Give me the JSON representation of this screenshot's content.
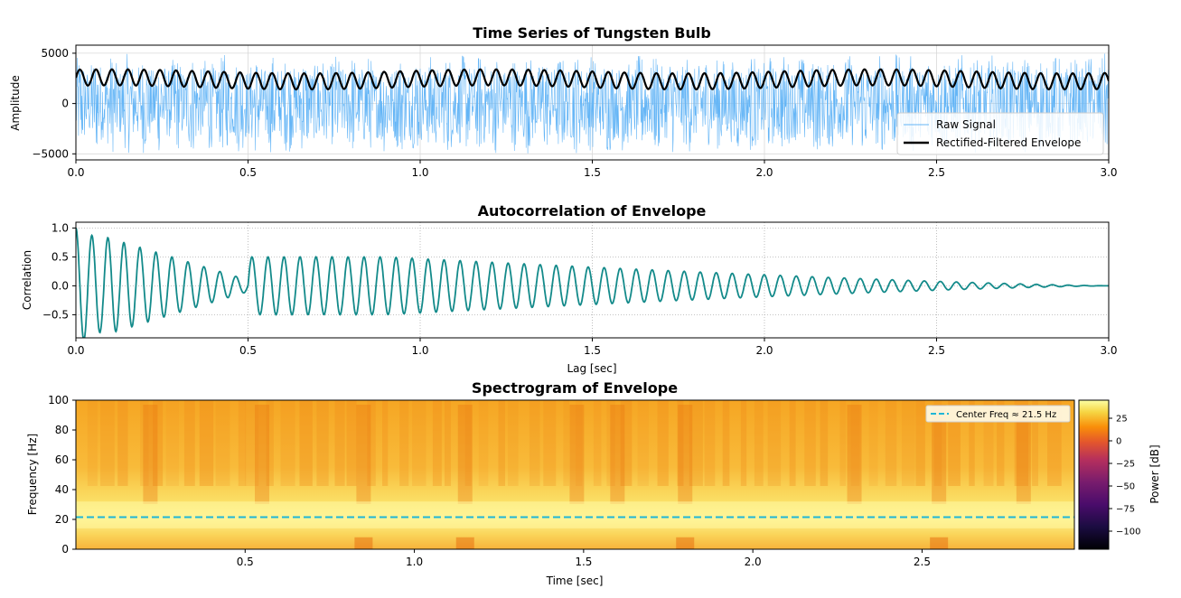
{
  "colors": {
    "raw_signal": "#64b5f6",
    "envelope": "#000000",
    "autocorr": "#138a8a",
    "center_freq_line": "#1fb6d6",
    "grid": "#b0b0b0"
  },
  "chart_data": [
    {
      "type": "line",
      "title": "Time Series of Tungsten Bulb",
      "xlabel": "",
      "ylabel": "Amplitude",
      "xlim": [
        0.0,
        3.0
      ],
      "ylim": [
        -5600,
        5800
      ],
      "xticks": [
        "0.0",
        "0.5",
        "1.0",
        "1.5",
        "2.0",
        "2.5",
        "3.0"
      ],
      "yticks": [
        "5000",
        "0",
        "−5000"
      ],
      "grid": true,
      "legend_position": "lower-right",
      "series": [
        {
          "name": "Raw Signal",
          "style": "thin line",
          "amplitude_range": [
            -5000,
            5000
          ],
          "oscillation_hz": 21.5
        },
        {
          "name": "Rectified-Filtered Envelope",
          "style": "thick line",
          "mean": 2400,
          "amplitude": 800,
          "oscillation_hz": 21.5
        }
      ]
    },
    {
      "type": "line",
      "title": "Autocorrelation of Envelope",
      "xlabel": "Lag [sec]",
      "ylabel": "Correlation",
      "xlim": [
        0.0,
        3.0
      ],
      "ylim": [
        -0.9,
        1.1
      ],
      "xticks": [
        "0.0",
        "0.5",
        "1.0",
        "1.5",
        "2.0",
        "2.5",
        "3.0"
      ],
      "yticks": [
        "1.0",
        "0.5",
        "0.0",
        "−0.5"
      ],
      "grid": true,
      "series": [
        {
          "start_value": 1.0,
          "first_min": -0.8,
          "period_sec": 0.0465,
          "decay_to": 0.0
        }
      ]
    },
    {
      "type": "heatmap",
      "title": "Spectrogram of Envelope",
      "xlabel": "Time [sec]",
      "ylabel": "Frequency [Hz]",
      "xlim": [
        0.0,
        2.95
      ],
      "ylim": [
        0,
        100
      ],
      "xticks": [
        "0.5",
        "1.0",
        "1.5",
        "2.0",
        "2.5"
      ],
      "yticks": [
        "100",
        "80",
        "60",
        "40",
        "20",
        "0"
      ],
      "legend_position": "upper-right",
      "legend_label": "Center Freq ≈ 21.5 Hz",
      "center_freq_hz": 21.5,
      "colorbar": {
        "label": "Power [dB]",
        "ticks": [
          "25",
          "0",
          "−25",
          "−50",
          "−75",
          "−100"
        ],
        "range": [
          -120,
          45
        ]
      }
    }
  ]
}
